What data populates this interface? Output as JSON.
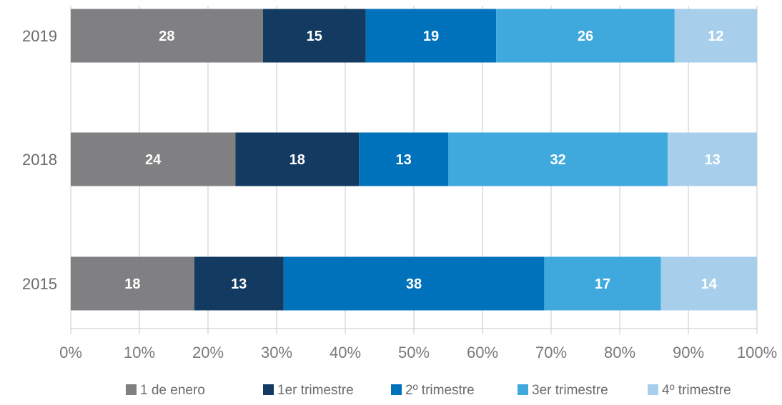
{
  "chart_data": {
    "type": "bar",
    "orientation": "horizontal",
    "stacked": true,
    "percent": true,
    "categories": [
      "2019",
      "2018",
      "2015"
    ],
    "series": [
      {
        "name": "1 de enero",
        "color": "#808083",
        "values": [
          28,
          24,
          18
        ]
      },
      {
        "name": "1er trimestre",
        "color": "#133a60",
        "values": [
          15,
          18,
          13
        ]
      },
      {
        "name": "2º trimestre",
        "color": "#0072bc",
        "values": [
          19,
          13,
          38
        ]
      },
      {
        "name": "3er trimestre",
        "color": "#3fa8dc",
        "values": [
          26,
          32,
          17
        ]
      },
      {
        "name": "4º trimestre",
        "color": "#a7cfec",
        "values": [
          12,
          13,
          14
        ]
      }
    ],
    "xticks": [
      "0%",
      "10%",
      "20%",
      "30%",
      "40%",
      "50%",
      "60%",
      "70%",
      "80%",
      "90%",
      "100%"
    ],
    "xlim": [
      0,
      100
    ],
    "grid": true,
    "legend_position": "bottom",
    "title": "",
    "xlabel": "",
    "ylabel": ""
  }
}
